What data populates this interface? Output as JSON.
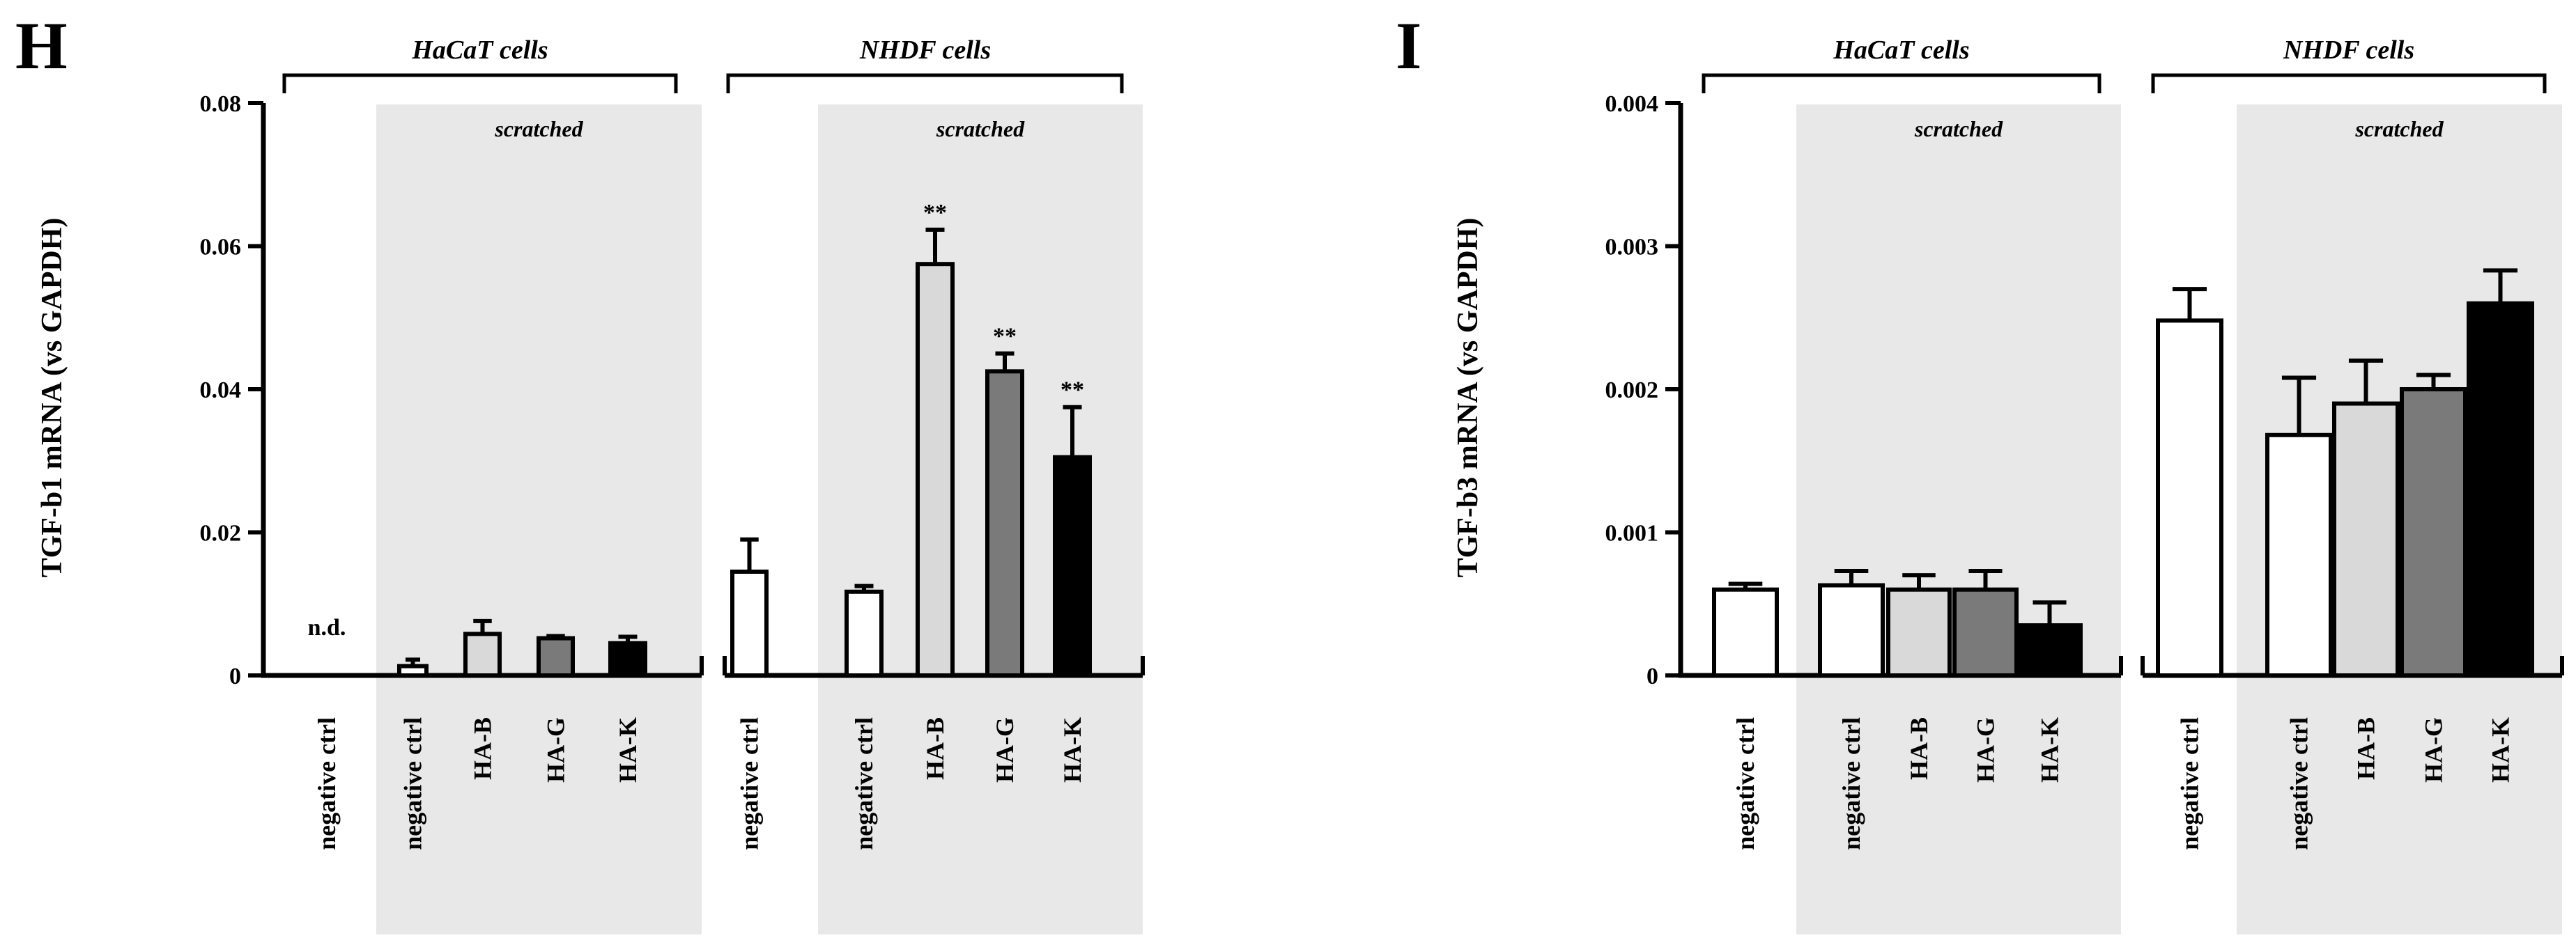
{
  "colors": {
    "shade": "#e8e8e8",
    "white": "#ffffff",
    "light_gray": "#d9d9d9",
    "dark_gray": "#7a7a7a",
    "black": "#000000"
  },
  "chart_data": [
    {
      "type": "bar",
      "panel_label": "H",
      "ylabel": "TGF-b1 mRNA (vs GAPDH)",
      "ylim": [
        0,
        0.08
      ],
      "yticks": [
        "0",
        "0.02",
        "0.04",
        "0.06",
        "0.08"
      ],
      "ytick_values": [
        0,
        0.02,
        0.04,
        0.06,
        0.08
      ],
      "groups": [
        "HaCaT cells",
        "NHDF cells"
      ],
      "shade_label": "scratched",
      "categories": [
        "negative ctrl",
        "negative ctrl",
        "HA-B",
        "HA-G",
        "HA-K",
        "negative ctrl",
        "negative ctrl",
        "HA-B",
        "HA-G",
        "HA-K"
      ],
      "values": [
        0,
        0.0013,
        0.0058,
        0.0052,
        0.0045,
        0.0145,
        0.0117,
        0.0575,
        0.0425,
        0.0305
      ],
      "errors": [
        0,
        0.0009,
        0.0018,
        0.0003,
        0.0009,
        0.0045,
        0.0008,
        0.0048,
        0.0025,
        0.007
      ],
      "fills": [
        "white",
        "white",
        "light_gray",
        "dark_gray",
        "black",
        "white",
        "white",
        "light_gray",
        "dark_gray",
        "black"
      ],
      "annotations": [
        "n.d.",
        "",
        "",
        "",
        "",
        "",
        "",
        "**",
        "**",
        "**"
      ]
    },
    {
      "type": "bar",
      "panel_label": "I",
      "ylabel": "TGF-b3 mRNA (vs GAPDH)",
      "ylim": [
        0,
        0.004
      ],
      "yticks": [
        "0",
        "0.001",
        "0.002",
        "0.003",
        "0.004"
      ],
      "ytick_values": [
        0,
        0.001,
        0.002,
        0.003,
        0.004
      ],
      "groups": [
        "HaCaT cells",
        "NHDF cells"
      ],
      "shade_label": "scratched",
      "categories": [
        "negative ctrl",
        "negative ctrl",
        "HA-B",
        "HA-G",
        "HA-K",
        "negative ctrl",
        "negative ctrl",
        "HA-B",
        "HA-G",
        "HA-K"
      ],
      "values": [
        0.0006,
        0.00063,
        0.0006,
        0.0006,
        0.00035,
        0.00248,
        0.00168,
        0.0019,
        0.002,
        0.0026
      ],
      "errors": [
        4e-05,
        0.0001,
        0.0001,
        0.00013,
        0.00016,
        0.00022,
        0.0004,
        0.0003,
        0.0001,
        0.00023
      ],
      "fills": [
        "white",
        "white",
        "light_gray",
        "dark_gray",
        "black",
        "white",
        "white",
        "light_gray",
        "dark_gray",
        "black"
      ],
      "annotations": [
        "",
        "",
        "",
        "",
        "",
        "",
        "",
        "",
        "",
        ""
      ]
    }
  ]
}
